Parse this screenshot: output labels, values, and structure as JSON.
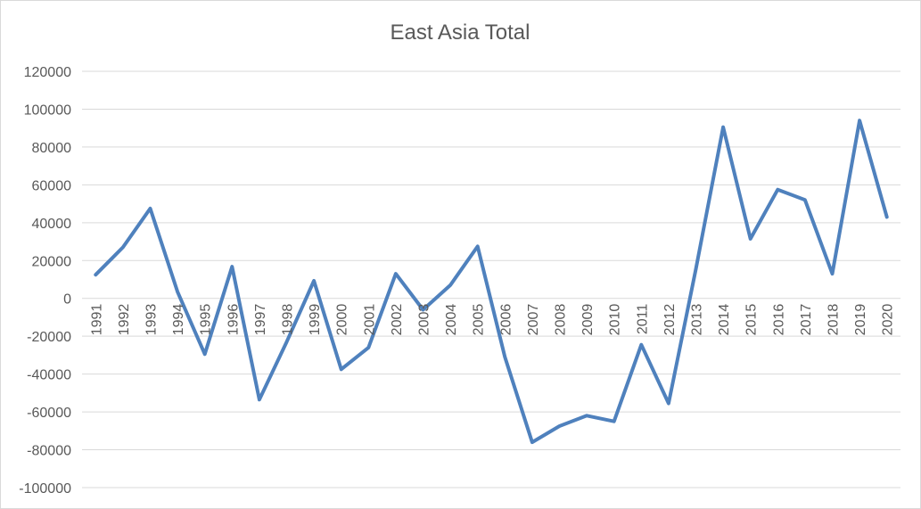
{
  "chart_data": {
    "type": "line",
    "title": "East Asia Total",
    "xlabel": "",
    "ylabel": "",
    "ylim": [
      -100000,
      120000
    ],
    "ytick_step": 20000,
    "yticks": [
      "120000",
      "100000",
      "80000",
      "60000",
      "40000",
      "20000",
      "0",
      "-20000",
      "-40000",
      "-60000",
      "-80000",
      "-100000"
    ],
    "grid": true,
    "legend": "none",
    "categories": [
      "1991",
      "1992",
      "1993",
      "1994",
      "1995",
      "1996",
      "1997",
      "1998",
      "1999",
      "2000",
      "2001",
      "2002",
      "2003",
      "2004",
      "2005",
      "2006",
      "2007",
      "2008",
      "2009",
      "2010",
      "2011",
      "2012",
      "2013",
      "2014",
      "2015",
      "2016",
      "2017",
      "2018",
      "2019",
      "2020"
    ],
    "series": [
      {
        "color": "#4f81bd",
        "values": [
          12500,
          27000,
          47500,
          3500,
          -29500,
          16800,
          -53500,
          -23000,
          9300,
          -37500,
          -26000,
          13000,
          -6000,
          7000,
          27500,
          -31000,
          -76000,
          -67500,
          -62000,
          -65000,
          -24500,
          -55500,
          15500,
          90500,
          31500,
          57500,
          52000,
          13000,
          94000,
          43000
        ]
      }
    ]
  }
}
